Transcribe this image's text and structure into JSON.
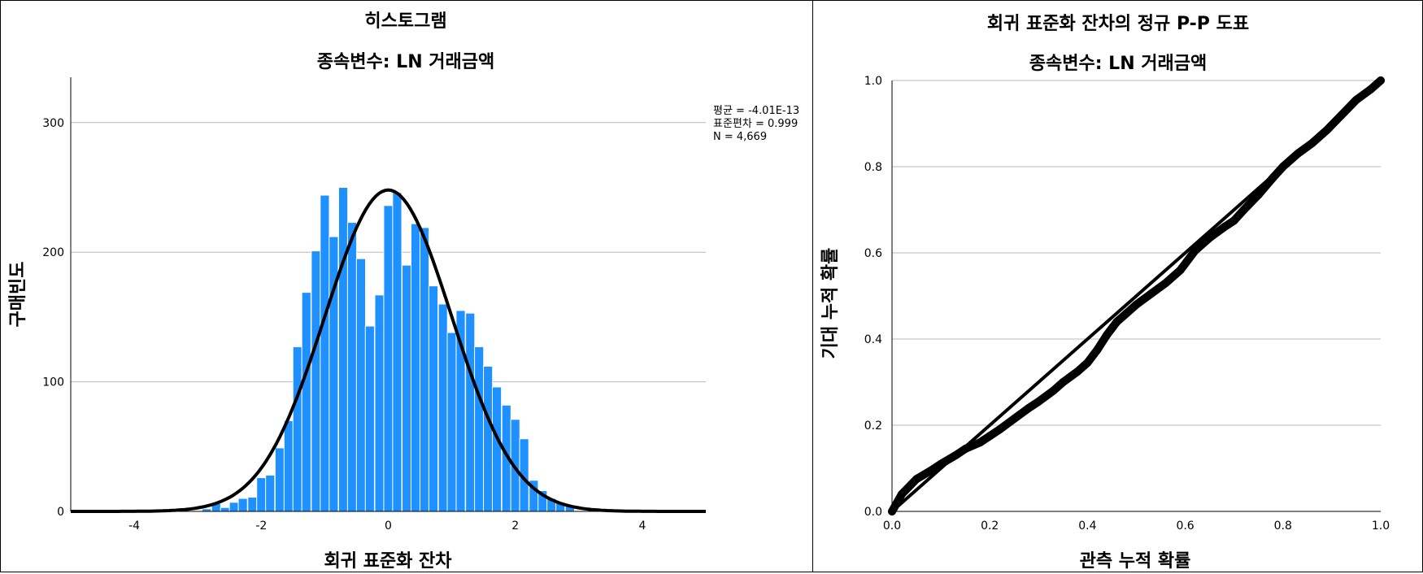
{
  "charts": [
    {
      "chart_data": {
        "type": "bar",
        "title": "히스토그램",
        "subtitle": "종속변수: LN 거래금액",
        "xlabel": "회귀 표준화 잔차",
        "ylabel": "구매빈도",
        "xlim": [
          -5,
          5
        ],
        "ylim": [
          0,
          335
        ],
        "x_ticks": [
          "-4",
          "-2",
          "0",
          "2",
          "4"
        ],
        "y_ticks": [
          "0",
          "100",
          "200",
          "300"
        ],
        "grid": true,
        "bin_width": 0.143,
        "bar_color": "#1e90ff",
        "bins": [
          {
            "x": -2.86,
            "count": 2
          },
          {
            "x": -2.71,
            "count": 6
          },
          {
            "x": -2.57,
            "count": 3
          },
          {
            "x": -2.43,
            "count": 7
          },
          {
            "x": -2.29,
            "count": 10
          },
          {
            "x": -2.14,
            "count": 11
          },
          {
            "x": -2.0,
            "count": 26
          },
          {
            "x": -1.86,
            "count": 28
          },
          {
            "x": -1.71,
            "count": 49
          },
          {
            "x": -1.57,
            "count": 70
          },
          {
            "x": -1.43,
            "count": 127
          },
          {
            "x": -1.29,
            "count": 169
          },
          {
            "x": -1.14,
            "count": 201
          },
          {
            "x": -1.0,
            "count": 244
          },
          {
            "x": -0.86,
            "count": 212
          },
          {
            "x": -0.71,
            "count": 250
          },
          {
            "x": -0.57,
            "count": 223
          },
          {
            "x": -0.43,
            "count": 195
          },
          {
            "x": -0.29,
            "count": 143
          },
          {
            "x": -0.14,
            "count": 167
          },
          {
            "x": 0.0,
            "count": 236
          },
          {
            "x": 0.14,
            "count": 246
          },
          {
            "x": 0.29,
            "count": 190
          },
          {
            "x": 0.43,
            "count": 222
          },
          {
            "x": 0.57,
            "count": 219
          },
          {
            "x": 0.71,
            "count": 174
          },
          {
            "x": 0.86,
            "count": 160
          },
          {
            "x": 1.0,
            "count": 138
          },
          {
            "x": 1.14,
            "count": 155
          },
          {
            "x": 1.29,
            "count": 153
          },
          {
            "x": 1.43,
            "count": 127
          },
          {
            "x": 1.57,
            "count": 112
          },
          {
            "x": 1.71,
            "count": 96
          },
          {
            "x": 1.86,
            "count": 82
          },
          {
            "x": 2.0,
            "count": 71
          },
          {
            "x": 2.14,
            "count": 56
          },
          {
            "x": 2.29,
            "count": 24
          },
          {
            "x": 2.43,
            "count": 16
          },
          {
            "x": 2.57,
            "count": 10
          },
          {
            "x": 2.71,
            "count": 7
          },
          {
            "x": 2.86,
            "count": 5
          }
        ],
        "normal_curve": {
          "mean": -4.01e-13,
          "sd": 0.999,
          "n": 4669,
          "peak": 248,
          "color": "#000000"
        },
        "annotations": [
          "평균 = -4.01E-13",
          "표준편차 = 0.999",
          "N = 4,669"
        ],
        "legend": "none"
      }
    },
    {
      "chart_data": {
        "type": "line",
        "title": "회귀 표준화 잔차의 정규 P-P 도표",
        "subtitle": "종속변수: LN 거래금액",
        "xlabel": "관측 누적 확률",
        "ylabel": "기대 누적 확률",
        "xlim": [
          0,
          1
        ],
        "ylim": [
          0,
          1
        ],
        "x_ticks": [
          "0.0",
          "0.2",
          "0.4",
          "0.6",
          "0.8",
          "1.0"
        ],
        "y_ticks": [
          "0.0",
          "0.2",
          "0.4",
          "0.6",
          "0.8",
          "1.0"
        ],
        "grid": true,
        "series": [
          {
            "values": [
              [
                0.0,
                0.0
              ],
              [
                0.02,
                0.04
              ],
              [
                0.05,
                0.075
              ],
              [
                0.08,
                0.095
              ],
              [
                0.1,
                0.11
              ],
              [
                0.13,
                0.13
              ],
              [
                0.15,
                0.145
              ],
              [
                0.18,
                0.16
              ],
              [
                0.2,
                0.175
              ],
              [
                0.22,
                0.19
              ],
              [
                0.25,
                0.215
              ],
              [
                0.28,
                0.24
              ],
              [
                0.3,
                0.255
              ],
              [
                0.33,
                0.28
              ],
              [
                0.35,
                0.3
              ],
              [
                0.38,
                0.325
              ],
              [
                0.4,
                0.345
              ],
              [
                0.42,
                0.375
              ],
              [
                0.44,
                0.41
              ],
              [
                0.46,
                0.44
              ],
              [
                0.48,
                0.46
              ],
              [
                0.5,
                0.48
              ],
              [
                0.53,
                0.505
              ],
              [
                0.56,
                0.53
              ],
              [
                0.59,
                0.56
              ],
              [
                0.62,
                0.605
              ],
              [
                0.65,
                0.635
              ],
              [
                0.68,
                0.66
              ],
              [
                0.7,
                0.675
              ],
              [
                0.72,
                0.7
              ],
              [
                0.75,
                0.735
              ],
              [
                0.78,
                0.775
              ],
              [
                0.8,
                0.8
              ],
              [
                0.83,
                0.83
              ],
              [
                0.86,
                0.855
              ],
              [
                0.89,
                0.885
              ],
              [
                0.92,
                0.92
              ],
              [
                0.95,
                0.955
              ],
              [
                0.98,
                0.98
              ],
              [
                1.0,
                1.0
              ]
            ]
          }
        ],
        "reference_line": [
          [
            0,
            0
          ],
          [
            1,
            1
          ]
        ],
        "legend": "none"
      }
    }
  ]
}
